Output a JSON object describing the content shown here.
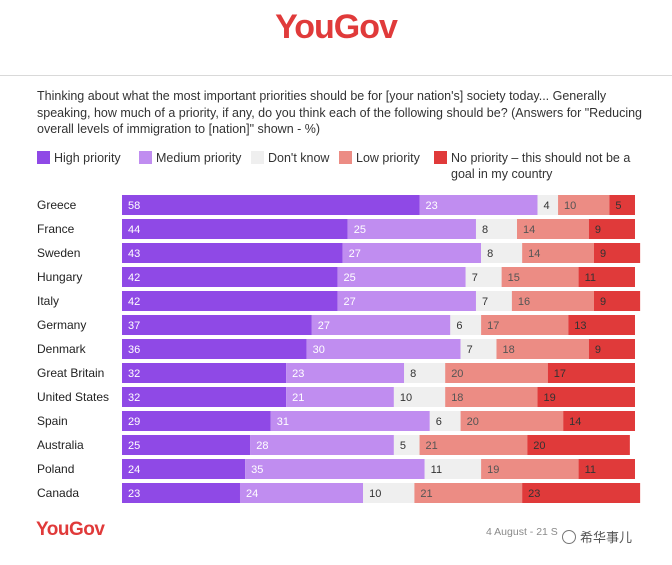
{
  "brand": {
    "logo": "YouGov",
    "logo_color": "#e03a3a"
  },
  "question": "Thinking about what the most important priorities should be for [your nation's] society today... Generally speaking, how much of a priority, if any, do you think each of the following should be? (Answers for \"Reducing overall levels of immigration to [nation]\" shown - %)",
  "footer": {
    "date": "4 August - 21 S",
    "watermark": "希华事儿"
  },
  "colors": {
    "high": "#8f49e6",
    "medium": "#c08df0",
    "dont_know": "#efefef",
    "low": "#ec8c84",
    "none": "#e03a3a"
  },
  "legend": [
    {
      "key": "high",
      "label": "High priority"
    },
    {
      "key": "medium",
      "label": "Medium priority"
    },
    {
      "key": "dont_know",
      "label": "Don't know"
    },
    {
      "key": "low",
      "label": "Low priority"
    },
    {
      "key": "none",
      "label": "No priority – this should not be a goal in my country"
    }
  ],
  "chart_data": {
    "type": "bar",
    "orientation": "horizontal",
    "stacked": true,
    "categories": [
      "Greece",
      "France",
      "Sweden",
      "Hungary",
      "Italy",
      "Germany",
      "Denmark",
      "Great Britain",
      "United States",
      "Spain",
      "Australia",
      "Poland",
      "Canada"
    ],
    "series": [
      {
        "name": "High priority",
        "key": "high",
        "values": [
          58,
          44,
          43,
          42,
          42,
          37,
          36,
          32,
          32,
          29,
          25,
          24,
          23
        ]
      },
      {
        "name": "Medium priority",
        "key": "medium",
        "values": [
          23,
          25,
          27,
          25,
          27,
          27,
          30,
          23,
          21,
          31,
          28,
          35,
          24
        ]
      },
      {
        "name": "Don't know",
        "key": "dont_know",
        "values": [
          4,
          8,
          8,
          7,
          7,
          6,
          7,
          8,
          10,
          6,
          5,
          11,
          10
        ]
      },
      {
        "name": "Low priority",
        "key": "low",
        "values": [
          10,
          14,
          14,
          15,
          16,
          17,
          18,
          20,
          18,
          20,
          21,
          19,
          21
        ]
      },
      {
        "name": "No priority – this should not be a goal in my country",
        "key": "none",
        "values": [
          5,
          9,
          9,
          11,
          9,
          13,
          9,
          17,
          19,
          14,
          20,
          11,
          23
        ]
      }
    ],
    "xlim": [
      0,
      100
    ],
    "grid": false,
    "legend_position": "top"
  }
}
